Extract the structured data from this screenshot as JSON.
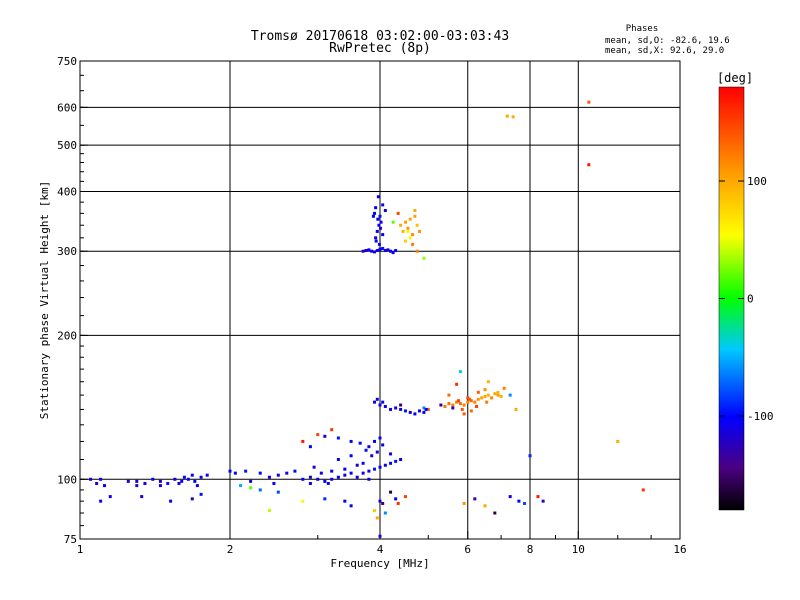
{
  "chart_data": {
    "type": "scatter",
    "title": "Tromsø 20170618 03:02:00-03:03:43",
    "subtitle": "RwPretec (8p)",
    "xlabel": "Frequency [MHz]",
    "ylabel": "Stationary phase Virtual Height [km]",
    "x_scale": "log",
    "y_scale": "log",
    "xlim": [
      1,
      16
    ],
    "ylim": [
      75,
      750
    ],
    "x_ticks": [
      1,
      2,
      4,
      6,
      8,
      10,
      16
    ],
    "x_tick_labels": [
      "1",
      "2",
      "4",
      "6",
      "8",
      "10",
      "16"
    ],
    "y_ticks": [
      75,
      100,
      200,
      300,
      400,
      500,
      600,
      750
    ],
    "y_tick_labels": [
      "75",
      "100",
      "200",
      "300",
      "400",
      "500",
      "600",
      "750"
    ],
    "grid": true,
    "phases_legend": {
      "heading": "Phases",
      "line_o": "mean, sd,O: -82.6, 19.6",
      "line_x": "mean, sd,X:  92.6, 29.0"
    },
    "colorbar": {
      "label": "[deg]",
      "range": [
        -180,
        180
      ],
      "ticks": [
        100,
        0,
        -100
      ],
      "tick_labels": [
        "100",
        "0",
        "-100"
      ]
    },
    "series": [
      {
        "name": "echoes",
        "points": [
          [
            1.05,
            100,
            -110
          ],
          [
            1.08,
            98,
            -115
          ],
          [
            1.1,
            100,
            -105
          ],
          [
            1.12,
            97,
            -100
          ],
          [
            1.15,
            92,
            -112
          ],
          [
            1.1,
            90,
            -108
          ],
          [
            1.25,
            99,
            -112
          ],
          [
            1.3,
            99,
            -115
          ],
          [
            1.35,
            98,
            -108
          ],
          [
            1.4,
            100,
            -100
          ],
          [
            1.45,
            99,
            -110
          ],
          [
            1.5,
            98,
            -95
          ],
          [
            1.55,
            100,
            -112
          ],
          [
            1.6,
            99,
            -105
          ],
          [
            1.65,
            100,
            -110
          ],
          [
            1.7,
            99,
            -100
          ],
          [
            1.75,
            101,
            -98
          ],
          [
            1.8,
            102,
            -105
          ],
          [
            1.3,
            97,
            -120
          ],
          [
            1.45,
            97,
            -112
          ],
          [
            1.58,
            98,
            -102
          ],
          [
            1.62,
            101,
            -96
          ],
          [
            1.72,
            97,
            -110
          ],
          [
            1.68,
            102,
            -108
          ],
          [
            1.33,
            92,
            -110
          ],
          [
            1.52,
            90,
            -100
          ],
          [
            1.75,
            93,
            -95
          ],
          [
            1.68,
            91,
            -115
          ],
          [
            2.0,
            104,
            -100
          ],
          [
            2.05,
            103,
            -108
          ],
          [
            2.15,
            104,
            -95
          ],
          [
            2.2,
            99,
            -110
          ],
          [
            2.3,
            103,
            -100
          ],
          [
            2.4,
            101,
            -115
          ],
          [
            2.5,
            102,
            -105
          ],
          [
            2.6,
            103,
            -110
          ],
          [
            2.7,
            104,
            -98
          ],
          [
            2.8,
            100,
            -105
          ],
          [
            2.9,
            101,
            -112
          ],
          [
            3.0,
            100,
            -110
          ],
          [
            3.1,
            99,
            -100
          ],
          [
            3.2,
            100,
            -115
          ],
          [
            3.3,
            101,
            -105
          ],
          [
            3.4,
            102,
            -108
          ],
          [
            3.5,
            103,
            -100
          ],
          [
            3.6,
            101,
            -112
          ],
          [
            3.7,
            103,
            -105
          ],
          [
            3.8,
            104,
            -110
          ],
          [
            3.9,
            105,
            -95
          ],
          [
            4.0,
            106,
            -102
          ],
          [
            4.1,
            107,
            -108
          ],
          [
            4.2,
            108,
            -100
          ],
          [
            4.3,
            109,
            -95
          ],
          [
            4.4,
            110,
            -105
          ],
          [
            4.2,
            113,
            -112
          ],
          [
            3.6,
            107,
            -110
          ],
          [
            3.4,
            105,
            -100
          ],
          [
            3.2,
            104,
            -102
          ],
          [
            3.05,
            103,
            -108
          ],
          [
            2.95,
            106,
            -115
          ],
          [
            3.3,
            110,
            -105
          ],
          [
            3.5,
            112,
            -100
          ],
          [
            3.7,
            108,
            -98
          ],
          [
            3.85,
            112,
            -110
          ],
          [
            3.95,
            114,
            -105
          ],
          [
            3.75,
            115,
            -96
          ],
          [
            2.45,
            98,
            -105
          ],
          [
            2.9,
            98,
            -110
          ],
          [
            3.15,
            98,
            -98
          ],
          [
            3.8,
            100,
            -107
          ],
          [
            2.1,
            97,
            -50
          ],
          [
            2.3,
            95,
            -70
          ],
          [
            2.5,
            94,
            -80
          ],
          [
            2.2,
            96,
            20
          ],
          [
            2.4,
            86,
            40
          ],
          [
            2.8,
            90,
            60
          ],
          [
            3.1,
            91,
            -90
          ],
          [
            3.4,
            90,
            -100
          ],
          [
            3.5,
            88,
            -105
          ],
          [
            4.0,
            90,
            -110
          ],
          [
            3.9,
            86,
            80
          ],
          [
            4.3,
            91,
            -100
          ],
          [
            4.5,
            92,
            150
          ],
          [
            4.1,
            85,
            -60
          ],
          [
            3.95,
            83,
            100
          ],
          [
            4.05,
            89,
            -150
          ],
          [
            4.2,
            94,
            -160
          ],
          [
            4.35,
            89,
            160
          ],
          [
            4.0,
            76,
            -110
          ],
          [
            2.8,
            120,
            170
          ],
          [
            3.0,
            124,
            150
          ],
          [
            3.1,
            123,
            -110
          ],
          [
            2.9,
            117,
            -100
          ],
          [
            3.3,
            122,
            -95
          ],
          [
            3.5,
            120,
            -105
          ],
          [
            3.65,
            119,
            -98
          ],
          [
            3.8,
            117,
            -110
          ],
          [
            3.9,
            120,
            -100
          ],
          [
            4.05,
            118,
            -105
          ],
          [
            4.0,
            122,
            -108
          ],
          [
            3.2,
            127,
            155
          ],
          [
            3.9,
            145,
            -105
          ],
          [
            4.0,
            143,
            -110
          ],
          [
            4.1,
            142,
            -100
          ],
          [
            4.2,
            140,
            -108
          ],
          [
            4.3,
            141,
            -102
          ],
          [
            4.4,
            140,
            -112
          ],
          [
            4.5,
            139,
            -95
          ],
          [
            4.6,
            138,
            -105
          ],
          [
            4.7,
            137,
            -100
          ],
          [
            4.8,
            139,
            -110
          ],
          [
            4.9,
            141,
            -60
          ],
          [
            5.0,
            140,
            140
          ],
          [
            4.95,
            140,
            -100
          ],
          [
            4.05,
            145,
            -98
          ],
          [
            3.95,
            147,
            -105
          ],
          [
            4.4,
            143,
            -150
          ],
          [
            4.9,
            138,
            -108
          ],
          [
            5.4,
            142,
            125
          ],
          [
            5.5,
            144,
            130
          ],
          [
            5.6,
            143,
            120
          ],
          [
            5.7,
            145,
            125
          ],
          [
            5.8,
            144,
            130
          ],
          [
            5.9,
            143,
            120
          ],
          [
            6.0,
            145,
            115
          ],
          [
            6.1,
            146,
            130
          ],
          [
            6.2,
            145,
            120
          ],
          [
            6.3,
            147,
            110
          ],
          [
            6.4,
            148,
            105
          ],
          [
            6.5,
            149,
            100
          ],
          [
            6.6,
            150,
            95
          ],
          [
            6.7,
            148,
            120
          ],
          [
            6.8,
            151,
            100
          ],
          [
            6.9,
            150,
            110
          ],
          [
            7.0,
            149,
            95
          ],
          [
            5.6,
            141,
            -130
          ],
          [
            5.85,
            140,
            140
          ],
          [
            6.05,
            147,
            140
          ],
          [
            6.5,
            154,
            115
          ],
          [
            6.0,
            148,
            145
          ],
          [
            6.25,
            142,
            150
          ],
          [
            6.9,
            152,
            95
          ],
          [
            5.7,
            158,
            160
          ],
          [
            6.6,
            160,
            95
          ],
          [
            7.1,
            155,
            120
          ],
          [
            7.3,
            150,
            -60
          ],
          [
            7.5,
            140,
            100
          ],
          [
            5.3,
            143,
            -130
          ],
          [
            6.1,
            139,
            130
          ],
          [
            5.9,
            137,
            140
          ],
          [
            5.75,
            146,
            150
          ],
          [
            6.3,
            152,
            135
          ],
          [
            6.55,
            145,
            125
          ],
          [
            5.5,
            150,
            130
          ],
          [
            5.8,
            168,
            -40
          ],
          [
            3.7,
            300,
            -120
          ],
          [
            3.75,
            301,
            -110
          ],
          [
            3.8,
            302,
            -100
          ],
          [
            3.85,
            300,
            -105
          ],
          [
            3.9,
            299,
            -112
          ],
          [
            3.95,
            301,
            -108
          ],
          [
            4.0,
            303,
            -100
          ],
          [
            4.05,
            304,
            -95
          ],
          [
            4.1,
            301,
            -110
          ],
          [
            4.15,
            302,
            -120
          ],
          [
            4.2,
            300,
            -108
          ],
          [
            4.25,
            298,
            -100
          ],
          [
            4.3,
            301,
            -105
          ],
          [
            3.92,
            320,
            -105
          ],
          [
            3.95,
            330,
            -110
          ],
          [
            3.98,
            340,
            -100
          ],
          [
            3.96,
            350,
            -108
          ],
          [
            4.0,
            355,
            -95
          ],
          [
            3.9,
            360,
            -105
          ],
          [
            4.02,
            345,
            -110
          ],
          [
            4.05,
            325,
            -100
          ],
          [
            3.93,
            315,
            -108
          ],
          [
            3.99,
            310,
            -98
          ],
          [
            4.01,
            335,
            -120
          ],
          [
            3.97,
            390,
            -110
          ],
          [
            3.88,
            355,
            -100
          ],
          [
            4.1,
            365,
            -105
          ],
          [
            4.05,
            375,
            -110
          ],
          [
            3.92,
            370,
            -100
          ],
          [
            4.4,
            340,
            100
          ],
          [
            4.45,
            330,
            95
          ],
          [
            4.5,
            345,
            105
          ],
          [
            4.55,
            335,
            110
          ],
          [
            4.6,
            350,
            100
          ],
          [
            4.65,
            325,
            115
          ],
          [
            4.7,
            355,
            105
          ],
          [
            4.75,
            340,
            90
          ],
          [
            4.8,
            330,
            110
          ],
          [
            4.7,
            365,
            100
          ],
          [
            4.6,
            320,
            60
          ],
          [
            4.55,
            330,
            50
          ],
          [
            4.5,
            315,
            80
          ],
          [
            4.65,
            310,
            120
          ],
          [
            4.9,
            290,
            30
          ],
          [
            4.25,
            345,
            20
          ],
          [
            4.35,
            360,
            150
          ],
          [
            4.75,
            300,
            120
          ],
          [
            7.2,
            575,
            100
          ],
          [
            7.4,
            573,
            100
          ],
          [
            10.5,
            615,
            140
          ],
          [
            10.5,
            455,
            170
          ],
          [
            12.0,
            120,
            100
          ],
          [
            13.5,
            95,
            160
          ],
          [
            8.0,
            112,
            -90
          ],
          [
            7.6,
            90,
            -100
          ],
          [
            8.5,
            90,
            -120
          ],
          [
            8.3,
            92,
            170
          ],
          [
            7.3,
            92,
            -110
          ],
          [
            6.8,
            85,
            -160
          ],
          [
            6.5,
            88,
            100
          ],
          [
            6.2,
            91,
            -130
          ],
          [
            5.9,
            89,
            110
          ],
          [
            7.8,
            89,
            -80
          ]
        ]
      }
    ]
  }
}
